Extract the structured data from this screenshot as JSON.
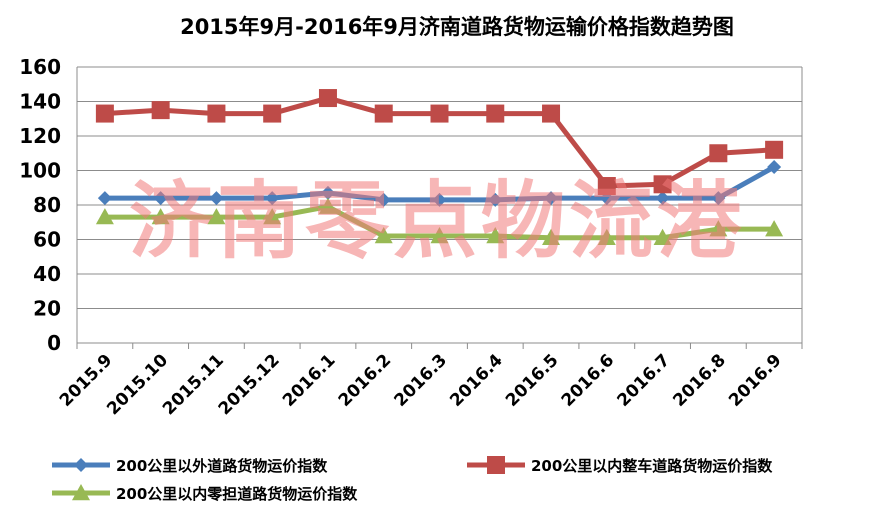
{
  "chart_data": {
    "type": "line",
    "title": "2015年9月-2016年9月济南道路货物运输价格指数趋势图",
    "categories": [
      "2015.9",
      "2015.10",
      "2015.11",
      "2015.12",
      "2016.1",
      "2016.2",
      "2016.3",
      "2016.4",
      "2016.5",
      "2016.6",
      "2016.7",
      "2016.8",
      "2016.9"
    ],
    "ylim": [
      0,
      160
    ],
    "yticks": [
      0,
      20,
      40,
      60,
      80,
      100,
      120,
      140,
      160
    ],
    "grid": true,
    "legend_position": "bottom",
    "series": [
      {
        "name": "200公里以外道路货物运价指数",
        "color": "#4a7ebb",
        "marker": "diamond",
        "values": [
          84,
          84,
          84,
          84,
          87,
          83,
          83,
          83,
          84,
          84,
          84,
          84,
          102
        ]
      },
      {
        "name": "200公里以内整车道路货物运价指数",
        "color": "#be4b48",
        "marker": "square",
        "values": [
          133,
          135,
          133,
          133,
          142,
          133,
          133,
          133,
          133,
          91,
          92,
          110,
          112
        ]
      },
      {
        "name": "200公里以内零担道路货物运价指数",
        "color": "#98b954",
        "marker": "triangle",
        "values": [
          73,
          73,
          73,
          73,
          79,
          62,
          62,
          62,
          61,
          61,
          61,
          66,
          66
        ]
      }
    ]
  },
  "watermark": "济南零点物流港"
}
